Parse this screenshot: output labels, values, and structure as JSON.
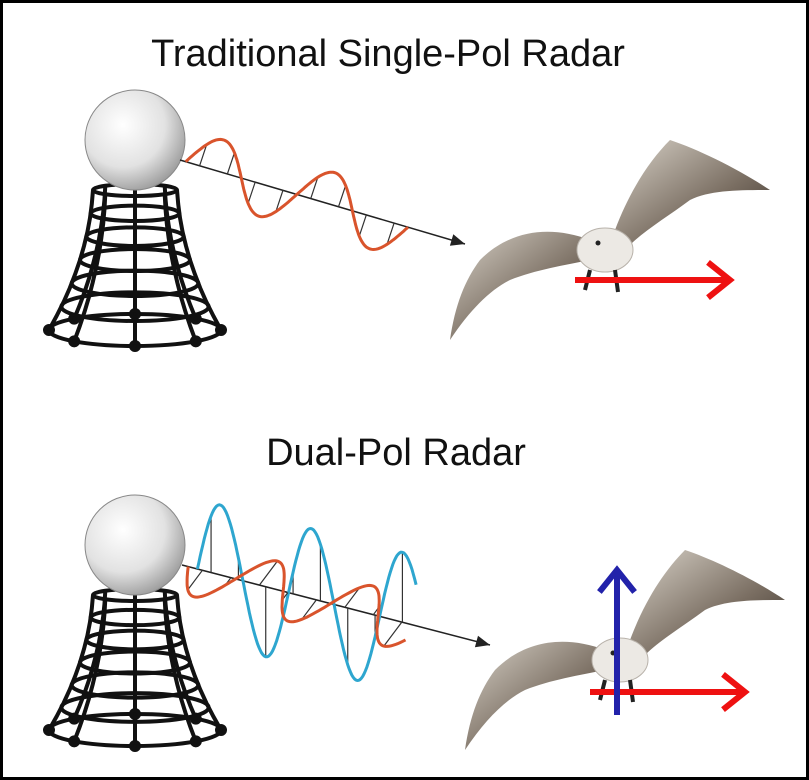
{
  "diagram": {
    "top": {
      "title": "Traditional Single-Pol Radar"
    },
    "bottom": {
      "title": "Dual-Pol Radar"
    }
  }
}
